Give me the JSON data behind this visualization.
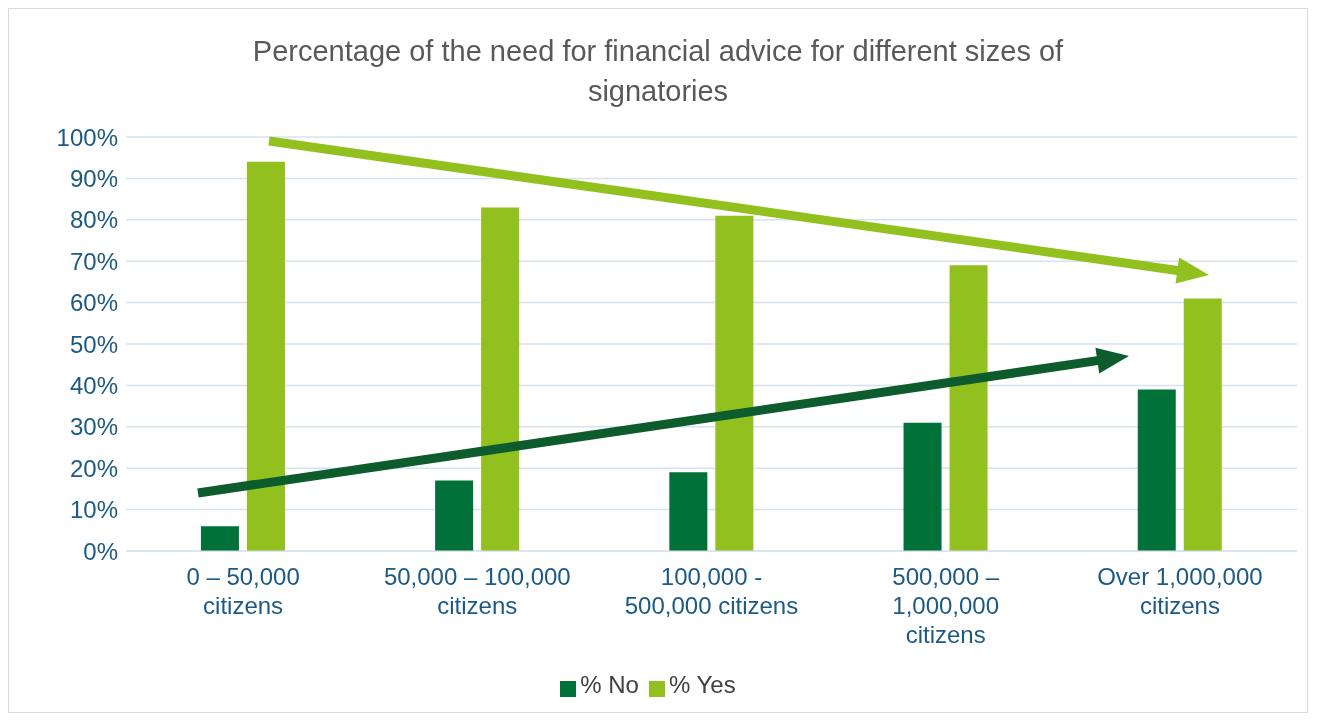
{
  "chart_data": {
    "type": "bar",
    "title": "Percentage of the need for financial advice for different sizes of signatories",
    "categories": [
      "0 – 50,000 citizens",
      "50,000 – 100,000 citizens",
      "100,000 - 500,000 citizens",
      "500,000 – 1,000,000 citizens",
      "Over 1,000,000 citizens"
    ],
    "series": [
      {
        "name": "% No",
        "color": "#007138",
        "values": [
          6,
          17,
          19,
          31,
          39
        ]
      },
      {
        "name": "% Yes",
        "color": "#92c01f",
        "values": [
          94,
          83,
          81,
          69,
          61
        ]
      }
    ],
    "ylim": [
      0,
      100
    ],
    "yticks": [
      {
        "value": 0,
        "label": "0%"
      },
      {
        "value": 10,
        "label": "10%"
      },
      {
        "value": 20,
        "label": "20%"
      },
      {
        "value": 30,
        "label": "30%"
      },
      {
        "value": 40,
        "label": "40%"
      },
      {
        "value": 50,
        "label": "50%"
      },
      {
        "value": 60,
        "label": "60%"
      },
      {
        "value": 70,
        "label": "70%"
      },
      {
        "value": 80,
        "label": "80%"
      },
      {
        "value": 90,
        "label": "90%"
      },
      {
        "value": 100,
        "label": "100%"
      }
    ],
    "grid": "y",
    "legend": "bottom"
  }
}
